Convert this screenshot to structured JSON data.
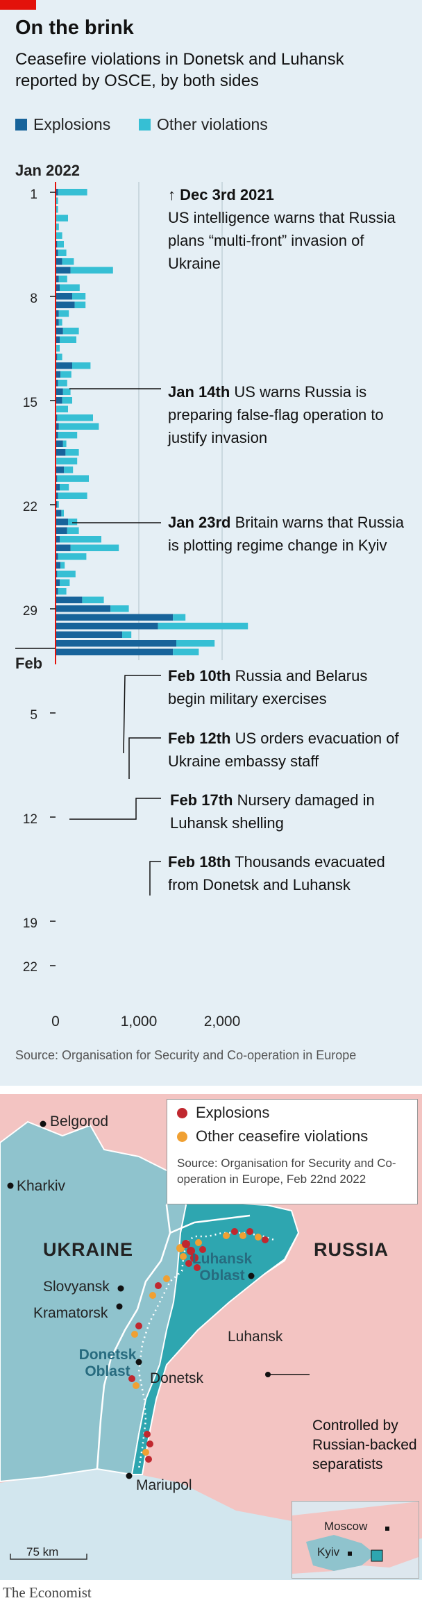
{
  "header": {
    "title": "On the brink",
    "subtitle": "Ceasefire violations in Donetsk and Luhansk reported by OSCE, by both sides"
  },
  "legend": {
    "explosions": "Explosions",
    "other": "Other violations"
  },
  "colors": {
    "explosions": "#17639a",
    "other": "#36bfd4",
    "red_accent": "#e3120b",
    "map_explosions": "#c0282f",
    "map_other": "#f0a032",
    "ukraine_fill": "#8fc3cd",
    "separatist_fill": "#2ea6b0",
    "russia_fill": "#f3c4c2"
  },
  "chart_data": {
    "type": "bar",
    "orientation": "horizontal",
    "stacked": true,
    "title": "On the brink",
    "subtitle": "Ceasefire violations in Donetsk and Luhansk reported by OSCE, by both sides",
    "month_labels": [
      "Jan 2022",
      "Feb"
    ],
    "day_tick_labels": [
      "1",
      "8",
      "15",
      "22",
      "29",
      "5",
      "12",
      "19",
      "22"
    ],
    "x_tick_labels": [
      "0",
      "1,000",
      "2,000"
    ],
    "xlim": [
      0,
      2700
    ],
    "grid": true,
    "categories": [
      "Dec 31",
      "Jan 1",
      "Jan 2",
      "Jan 3",
      "Jan 4",
      "Jan 5",
      "Jan 6",
      "Jan 7",
      "Jan 8",
      "Jan 9",
      "Jan 10",
      "Jan 11",
      "Jan 12",
      "Jan 13",
      "Jan 14",
      "Jan 15",
      "Jan 16",
      "Jan 17",
      "Jan 18",
      "Jan 19",
      "Jan 20",
      "Jan 21",
      "Jan 22",
      "Jan 23",
      "Jan 24",
      "Jan 25",
      "Jan 26",
      "Jan 27",
      "Jan 28",
      "Jan 29",
      "Jan 30",
      "Jan 31",
      "Feb 1",
      "Feb 2",
      "Feb 3",
      "Feb 4",
      "Feb 5",
      "Feb 6",
      "Feb 7",
      "Feb 8",
      "Feb 9",
      "Feb 10",
      "Feb 11",
      "Feb 12",
      "Feb 13",
      "Feb 14",
      "Feb 15",
      "Feb 16",
      "Feb 17",
      "Feb 18",
      "Feb 19",
      "Feb 20",
      "Feb 21",
      "Feb 22"
    ],
    "series": [
      {
        "name": "Explosions",
        "values": [
          30,
          0,
          0,
          0,
          0,
          0,
          20,
          30,
          80,
          180,
          40,
          50,
          200,
          230,
          40,
          40,
          90,
          50,
          10,
          20,
          200,
          60,
          30,
          90,
          80,
          10,
          20,
          40,
          30,
          90,
          120,
          10,
          100,
          20,
          50,
          30,
          20,
          70,
          150,
          140,
          50,
          180,
          30,
          60,
          20,
          50,
          30,
          320,
          660,
          1410,
          1230,
          800,
          1450,
          1410
        ]
      },
      {
        "name": "Other violations",
        "values": [
          350,
          30,
          30,
          150,
          40,
          80,
          80,
          100,
          140,
          510,
          100,
          240,
          160,
          130,
          120,
          40,
          190,
          200,
          40,
          60,
          220,
          130,
          110,
          90,
          120,
          140,
          430,
          480,
          230,
          40,
          160,
          250,
          110,
          380,
          110,
          350,
          20,
          30,
          110,
          140,
          500,
          580,
          340,
          50,
          220,
          120,
          100,
          260,
          220,
          150,
          1080,
          110,
          460,
          310
        ]
      }
    ]
  },
  "annotations": [
    {
      "key": "↑ Dec 3rd 2021",
      "text": "US intelligence warns that Russia plans “multi-front” invasion of Ukraine"
    },
    {
      "key": "Jan 14th",
      "text": "US warns Russia is preparing false-flag operation to justify invasion"
    },
    {
      "key": "Jan 23rd",
      "text": "Britain warns that Russia is plotting regime change in Kyiv"
    },
    {
      "key": "Feb 10th",
      "text": "Russia and Belarus begin military exercises"
    },
    {
      "key": "Feb 12th",
      "text": "US orders evacuation of Ukraine embassy staff"
    },
    {
      "key": "Feb 17th",
      "text": "Nursery damaged in Luhansk shelling"
    },
    {
      "key": "Feb 18th",
      "text": "Thousands evacuated from Donetsk and Luhansk"
    }
  ],
  "source_chart": "Source: Organisation for Security and Co-operation in Europe",
  "map": {
    "legend_explosions": "Explosions",
    "legend_other": "Other ceasefire violations",
    "source": "Source: Organisation for Security and Co-operation in Europe, Feb 22nd 2022",
    "cities": {
      "belgorod": "Belgorod",
      "kharkiv": "Kharkiv",
      "slovyansk": "Slovyansk",
      "kramatorsk": "Kramatorsk",
      "luhansk": "Luhansk",
      "donetsk": "Donetsk",
      "mariupol": "Mariupol",
      "moscow": "Moscow",
      "kyiv": "Kyiv"
    },
    "countries": {
      "ukraine": "UKRAINE",
      "russia": "RUSSIA"
    },
    "oblasts": {
      "luhansk": "Luhansk Oblast",
      "donetsk": "Donetsk Oblast"
    },
    "controlled": "Controlled by Russian-backed separatists",
    "scale": "75 km"
  },
  "footer": {
    "brand": "The Economist"
  }
}
